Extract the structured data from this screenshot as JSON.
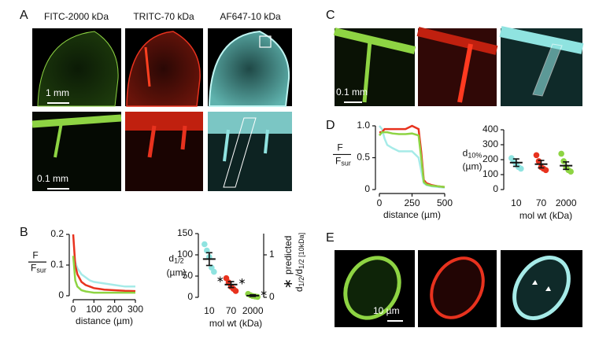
{
  "figure": {
    "panels": [
      "A",
      "B",
      "C",
      "D",
      "E"
    ],
    "a_titles": [
      "FITC-2000 kDa",
      "TRITC-70 kDa",
      "AF647-10 kDa"
    ],
    "scale_bars": [
      "1 mm",
      "0.1 mm",
      "0.1 mm",
      "10 µm"
    ]
  },
  "chart_data": [
    {
      "type": "line",
      "ylabel": {
        "numerator": "F",
        "denominator": [
          "F",
          "sur"
        ]
      },
      "xlabel": "distance (µm)",
      "xlim": [
        0,
        300
      ],
      "xticks": [
        0,
        100,
        200,
        300
      ],
      "ylim": [
        0,
        0.2
      ],
      "yticks": [
        0,
        0.1,
        0.2
      ],
      "x": [
        0,
        10,
        20,
        40,
        60,
        80,
        100,
        150,
        200,
        250,
        300
      ],
      "series": [
        {
          "color": "#a6ebe8",
          "values": [
            0.13,
            0.11,
            0.09,
            0.07,
            0.06,
            0.05,
            0.045,
            0.04,
            0.035,
            0.03,
            0.03
          ]
        },
        {
          "color": "#e8321e",
          "values": [
            0.2,
            0.1,
            0.07,
            0.045,
            0.035,
            0.03,
            0.025,
            0.02,
            0.018,
            0.016,
            0.015
          ]
        },
        {
          "color": "#8ed443",
          "values": [
            0.13,
            0.05,
            0.03,
            0.018,
            0.014,
            0.012,
            0.01,
            0.01,
            0.01,
            0.01,
            0.01
          ]
        }
      ]
    },
    {
      "type": "strip",
      "ylabel": {
        "name": [
          "d",
          "1/2"
        ],
        "unit": "(µm)"
      },
      "xlabel": "mol wt (kDa)",
      "categories": [
        "10",
        "70",
        "2000"
      ],
      "colors": [
        "#8fe3e0",
        "#e8321e",
        "#8ed443"
      ],
      "ylim": [
        0,
        150
      ],
      "yticks": [
        0,
        50,
        100,
        150
      ],
      "points": [
        [
          125,
          110,
          95,
          70,
          60
        ],
        [
          45,
          35,
          25,
          20,
          15
        ],
        [
          8,
          5,
          3,
          2,
          1
        ]
      ],
      "means": [
        90,
        30,
        4
      ],
      "sems": [
        15,
        7,
        2
      ],
      "y2label": {
        "symbol": "∗",
        "line1": "predicted",
        "line2": [
          "d",
          "1/2",
          "/d",
          "1/2 [10kDa]"
        ]
      },
      "y2lim": [
        0,
        1.5
      ],
      "y2ticks": [
        0,
        1
      ],
      "predicted": [
        0.45,
        0.4,
        0.12
      ]
    },
    {
      "type": "line",
      "ylabel": {
        "numerator": "F",
        "denominator": [
          "F",
          "sur"
        ]
      },
      "xlabel": "distance (µm)",
      "xlim": [
        0,
        500
      ],
      "xticks": [
        0,
        250,
        500
      ],
      "ylim": [
        0,
        1
      ],
      "yticks": [
        0,
        0.5,
        {
          "value": 1,
          "label": "1.0"
        }
      ],
      "x": [
        0,
        20,
        40,
        60,
        100,
        150,
        200,
        250,
        300,
        320,
        340,
        360,
        400,
        450,
        500
      ],
      "series": [
        {
          "color": "#a6ebe8",
          "values": [
            1,
            0.95,
            0.8,
            0.7,
            0.65,
            0.6,
            0.6,
            0.6,
            0.5,
            0.3,
            0.1,
            0.07,
            0.05,
            0.04,
            0.03
          ]
        },
        {
          "color": "#e8321e",
          "values": [
            0.9,
            0.9,
            0.95,
            0.95,
            0.95,
            0.95,
            0.95,
            1,
            0.95,
            0.6,
            0.15,
            0.1,
            0.07,
            0.05,
            0.04
          ]
        },
        {
          "color": "#8ed443",
          "values": [
            0.85,
            0.9,
            0.9,
            0.9,
            0.88,
            0.87,
            0.87,
            0.88,
            0.85,
            0.5,
            0.12,
            0.08,
            0.06,
            0.05,
            0.04
          ]
        }
      ]
    },
    {
      "type": "strip",
      "ylabel": {
        "name": [
          "d",
          "10%"
        ],
        "unit": "(µm)"
      },
      "xlabel": "mol wt (kDa)",
      "categories": [
        "10",
        "70",
        "2000"
      ],
      "colors": [
        "#8fe3e0",
        "#e8321e",
        "#8ed443"
      ],
      "ylim": [
        0,
        400
      ],
      "yticks": [
        0,
        100,
        200,
        300,
        400
      ],
      "points": [
        [
          210,
          190,
          170,
          150,
          140
        ],
        [
          230,
          190,
          150,
          140,
          130
        ],
        [
          240,
          190,
          150,
          130,
          120
        ]
      ],
      "means": [
        180,
        170,
        160
      ],
      "sems": [
        25,
        25,
        25
      ]
    }
  ]
}
